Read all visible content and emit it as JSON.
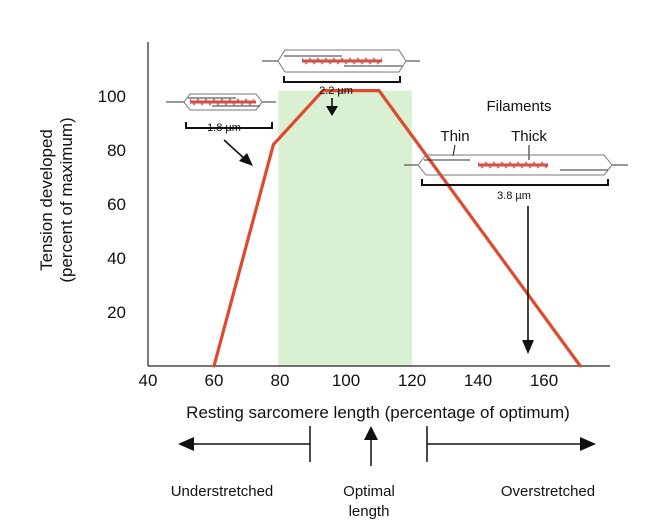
{
  "chart_data": {
    "type": "line",
    "xlabel": "Resting sarcomere length (percentage of optimum)",
    "ylabel_lines": [
      "Tension developed",
      "(percent of maximum)"
    ],
    "x_ticks": [
      "40",
      "60",
      "80",
      "100",
      "120",
      "140",
      "160"
    ],
    "y_ticks": [
      "20",
      "40",
      "60",
      "80",
      "100"
    ],
    "xlim": [
      40,
      180
    ],
    "ylim": [
      0,
      120
    ],
    "series": [
      {
        "color": "#e0492c",
        "x": [
          60,
          78,
          93,
          110,
          171
        ],
        "y": [
          0,
          82,
          102,
          102,
          0
        ]
      }
    ],
    "shaded_band": {
      "x": [
        79.5,
        120
      ],
      "color": "#d9f0d3"
    },
    "annotations": {
      "sarcomere_short": "1.8 µm",
      "sarcomere_optimal": "2.2 µm",
      "sarcomere_long": "3.8 µm",
      "filaments_title": "Filaments",
      "thin_label": "Thin",
      "thick_label": "Thick"
    },
    "regions": {
      "left": "Understretched",
      "center_line1": "Optimal",
      "center_line2": "length",
      "right": "Overstretched"
    },
    "grid": false,
    "legend": "none"
  }
}
